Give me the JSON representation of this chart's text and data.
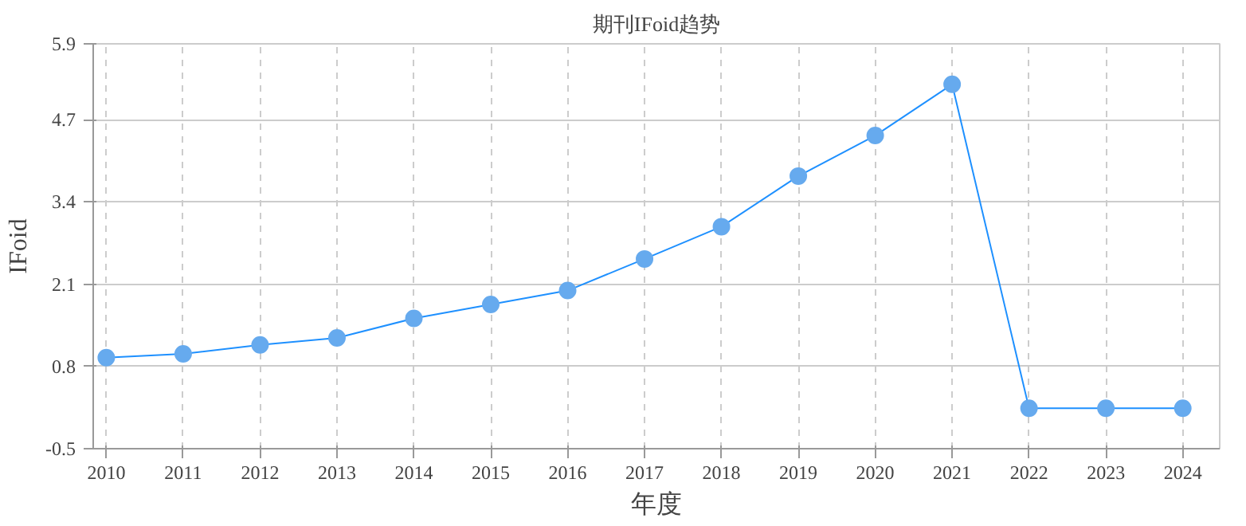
{
  "chart_data": {
    "type": "line",
    "title": "期刊IFoid趋势",
    "xlabel": "年度",
    "ylabel": "IFoid",
    "categories": [
      "2010",
      "2011",
      "2012",
      "2013",
      "2014",
      "2015",
      "2016",
      "2017",
      "2018",
      "2019",
      "2020",
      "2021",
      "2022",
      "2023",
      "2024"
    ],
    "series": [
      {
        "color": "#1e90ff",
        "values": [
          0.94,
          1.0,
          1.14,
          1.25,
          1.56,
          1.78,
          2.0,
          2.5,
          3.01,
          3.81,
          4.45,
          5.26,
          0.14,
          0.14,
          0.14
        ]
      }
    ],
    "ylim": [
      -0.5,
      5.9
    ],
    "yticks": [
      -0.5,
      0.8,
      2.1,
      3.4,
      4.7,
      5.9
    ],
    "grid": true,
    "marker": "circle",
    "line_style": "solid"
  }
}
